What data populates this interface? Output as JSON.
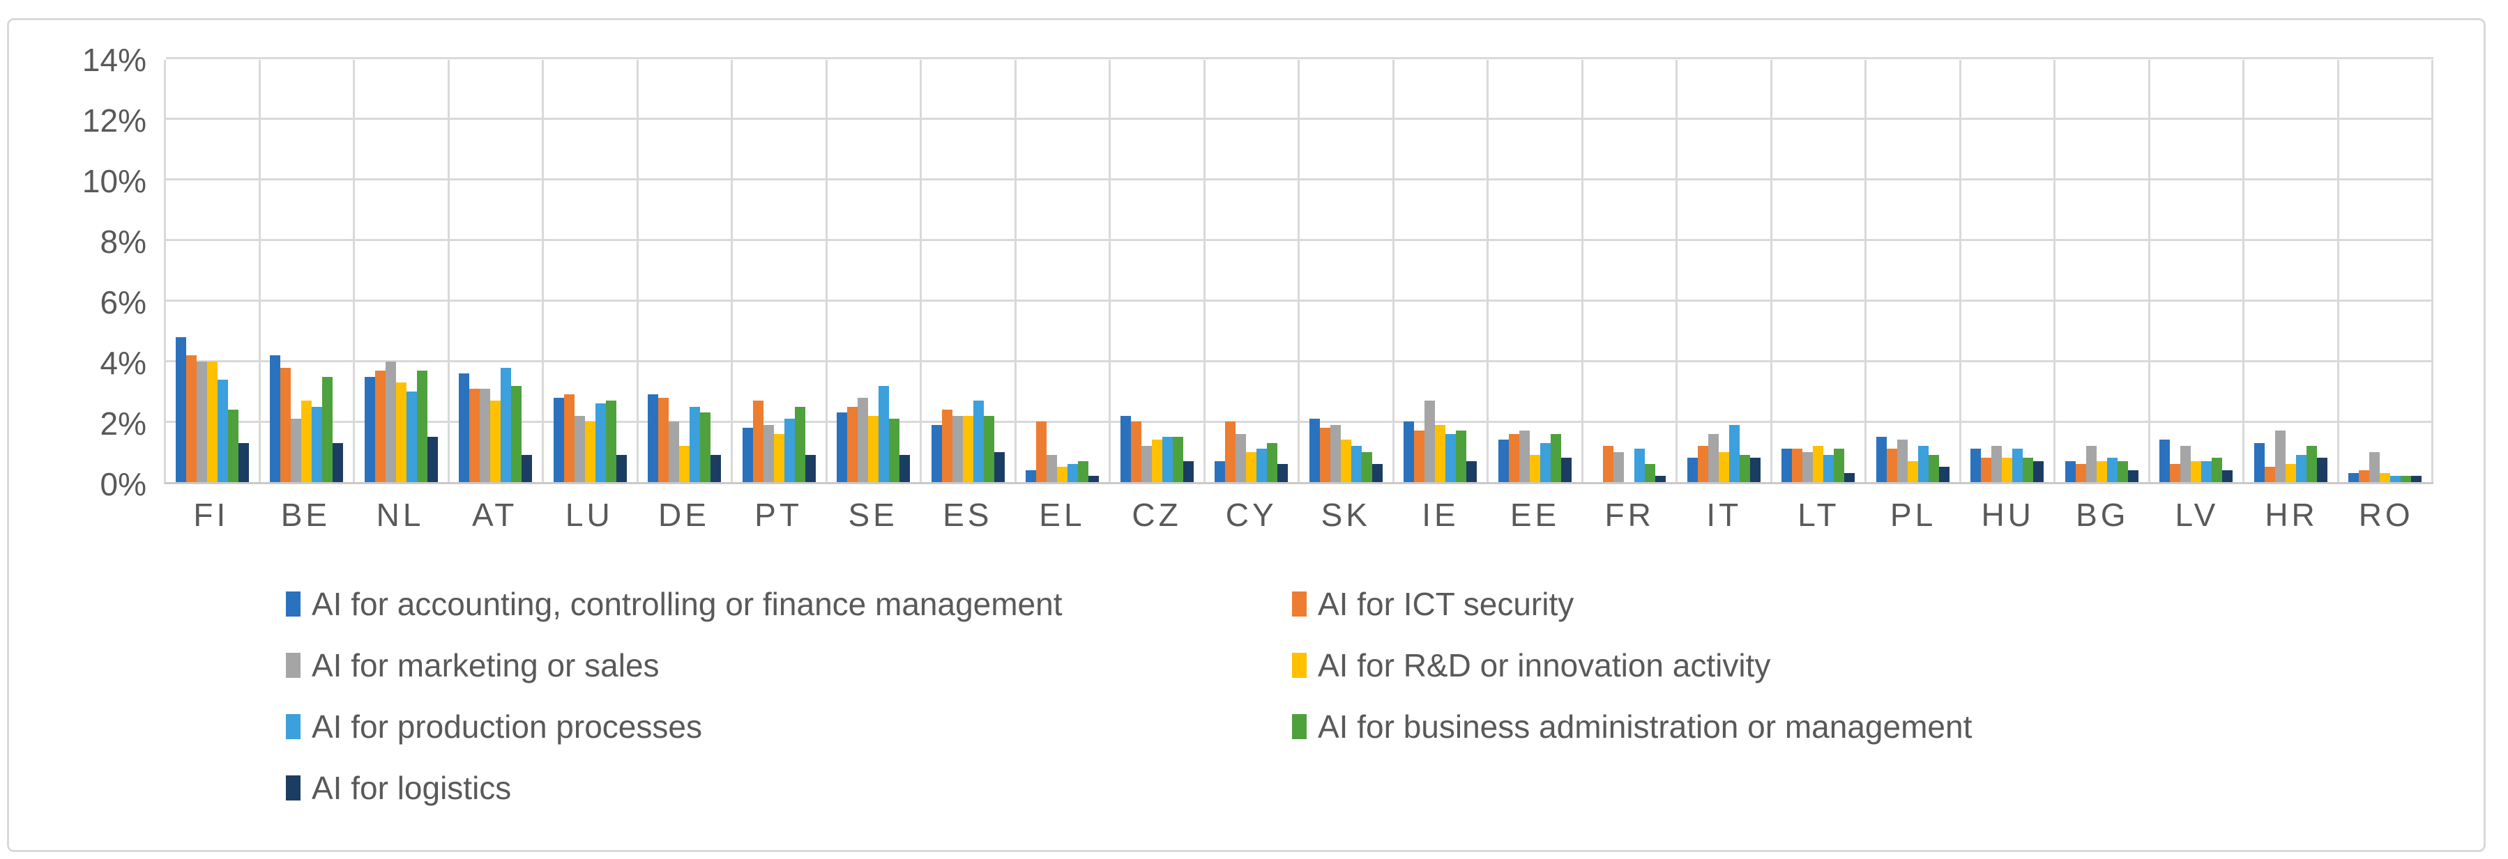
{
  "figure": {
    "background": "#FFFFFF",
    "border_color": "#D9D9D9",
    "grid_color": "#D9D9D9",
    "tick_text_color": "#595959"
  },
  "chart_data": {
    "type": "bar",
    "title": "",
    "xlabel": "",
    "ylabel": "",
    "ylim": [
      0,
      14
    ],
    "ytick_step": 2,
    "ytick_labels": [
      "0%",
      "2%",
      "4%",
      "6%",
      "8%",
      "10%",
      "12%",
      "14%"
    ],
    "grid": true,
    "legend_position": "bottom",
    "categories": [
      "FI",
      "BE",
      "NL",
      "AT",
      "LU",
      "DE",
      "PT",
      "SE",
      "ES",
      "EL",
      "CZ",
      "CY",
      "SK",
      "IE",
      "EE",
      "FR",
      "IT",
      "LT",
      "PL",
      "HU",
      "BG",
      "LV",
      "HR",
      "RO"
    ],
    "series": [
      {
        "name": "AI for accounting, controlling or finance management",
        "color": "#2A72BE",
        "values": [
          4.8,
          4.2,
          3.5,
          3.6,
          2.8,
          2.9,
          1.8,
          2.3,
          1.9,
          0.4,
          2.2,
          0.7,
          2.1,
          2.0,
          1.4,
          0.0,
          0.8,
          1.1,
          1.5,
          1.1,
          0.7,
          1.4,
          1.3,
          0.3
        ]
      },
      {
        "name": "AI for ICT security",
        "color": "#ED7D31",
        "values": [
          4.2,
          3.8,
          3.7,
          3.1,
          2.9,
          2.8,
          2.7,
          2.5,
          2.4,
          2.0,
          2.0,
          2.0,
          1.8,
          1.7,
          1.6,
          1.2,
          1.2,
          1.1,
          1.1,
          0.8,
          0.6,
          0.6,
          0.5,
          0.4
        ]
      },
      {
        "name": "AI for marketing or sales",
        "color": "#A5A5A5",
        "values": [
          4.0,
          2.1,
          4.0,
          3.1,
          2.2,
          2.0,
          1.9,
          2.8,
          2.2,
          0.9,
          1.2,
          1.6,
          1.9,
          2.7,
          1.7,
          1.0,
          1.6,
          1.0,
          1.4,
          1.2,
          1.2,
          1.2,
          1.7,
          1.0
        ]
      },
      {
        "name": "AI for R&D or innovation activity",
        "color": "#FFC000",
        "values": [
          4.0,
          2.7,
          3.3,
          2.7,
          2.0,
          1.2,
          1.6,
          2.2,
          2.2,
          0.5,
          1.4,
          1.0,
          1.4,
          1.9,
          0.9,
          0.0,
          1.0,
          1.2,
          0.7,
          0.8,
          0.7,
          0.7,
          0.6,
          0.3
        ]
      },
      {
        "name": "AI for production processes",
        "color": "#3BA0DC",
        "values": [
          3.4,
          2.5,
          3.0,
          3.8,
          2.6,
          2.5,
          2.1,
          3.2,
          2.7,
          0.6,
          1.5,
          1.1,
          1.2,
          1.6,
          1.3,
          1.1,
          1.9,
          0.9,
          1.2,
          1.1,
          0.8,
          0.7,
          0.9,
          0.2
        ]
      },
      {
        "name": "AI for business administration or management",
        "color": "#4EA13C",
        "values": [
          2.4,
          3.5,
          3.7,
          3.2,
          2.7,
          2.3,
          2.5,
          2.1,
          2.2,
          0.7,
          1.5,
          1.3,
          1.0,
          1.7,
          1.6,
          0.6,
          0.9,
          1.1,
          0.9,
          0.8,
          0.7,
          0.8,
          1.2,
          0.2
        ]
      },
      {
        "name": "AI for logistics",
        "color": "#1C3D63",
        "values": [
          1.3,
          1.3,
          1.5,
          0.9,
          0.9,
          0.9,
          0.9,
          0.9,
          1.0,
          0.2,
          0.7,
          0.6,
          0.6,
          0.7,
          0.8,
          0.2,
          0.8,
          0.3,
          0.5,
          0.7,
          0.4,
          0.4,
          0.8,
          0.2
        ]
      }
    ]
  }
}
